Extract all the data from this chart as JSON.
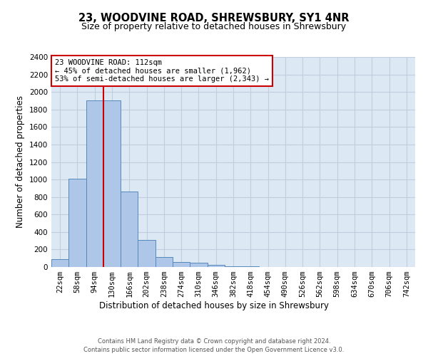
{
  "title": "23, WOODVINE ROAD, SHREWSBURY, SY1 4NR",
  "subtitle": "Size of property relative to detached houses in Shrewsbury",
  "xlabel": "Distribution of detached houses by size in Shrewsbury",
  "ylabel": "Number of detached properties",
  "categories": [
    "22sqm",
    "58sqm",
    "94sqm",
    "130sqm",
    "166sqm",
    "202sqm",
    "238sqm",
    "274sqm",
    "310sqm",
    "346sqm",
    "382sqm",
    "418sqm",
    "454sqm",
    "490sqm",
    "526sqm",
    "562sqm",
    "598sqm",
    "634sqm",
    "670sqm",
    "706sqm",
    "742sqm"
  ],
  "values": [
    90,
    1010,
    1900,
    1900,
    860,
    310,
    115,
    60,
    45,
    25,
    10,
    5,
    3,
    3,
    2,
    2,
    2,
    2,
    2,
    2,
    2
  ],
  "bar_color": "#aec6e8",
  "bar_edge_color": "#5588bb",
  "vline_x_index": 2.5,
  "vline_color": "#cc0000",
  "annotation_text": "23 WOODVINE ROAD: 112sqm\n← 45% of detached houses are smaller (1,962)\n53% of semi-detached houses are larger (2,343) →",
  "annotation_box_color": "#ffffff",
  "annotation_box_edge_color": "#cc0000",
  "ylim": [
    0,
    2400
  ],
  "yticks": [
    0,
    200,
    400,
    600,
    800,
    1000,
    1200,
    1400,
    1600,
    1800,
    2000,
    2200,
    2400
  ],
  "footer1": "Contains HM Land Registry data © Crown copyright and database right 2024.",
  "footer2": "Contains public sector information licensed under the Open Government Licence v3.0.",
  "bg_color": "#ffffff",
  "plot_bg_color": "#dde8f5",
  "grid_color": "#c0cfe0",
  "title_fontsize": 10.5,
  "subtitle_fontsize": 9,
  "tick_fontsize": 7.5,
  "ylabel_fontsize": 8.5,
  "xlabel_fontsize": 8.5,
  "annotation_fontsize": 7.5,
  "footer_fontsize": 6
}
